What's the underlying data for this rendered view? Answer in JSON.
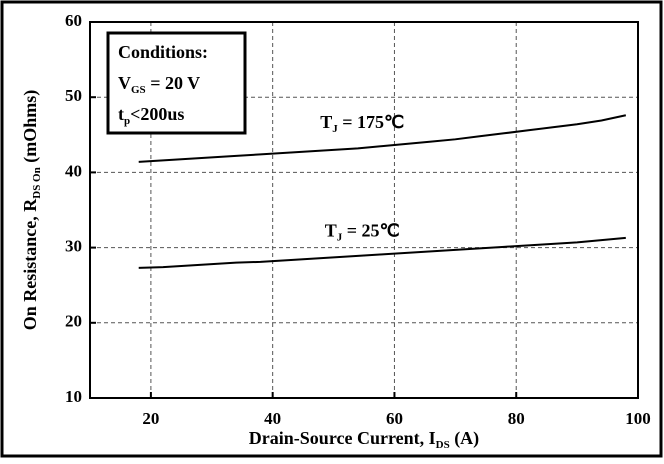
{
  "chart_data": {
    "type": "line",
    "xlabel": [
      "Drain-Source Current, I",
      "DS",
      " (A)"
    ],
    "ylabel": [
      "On Resistance, R",
      "DS On",
      "  (mOhms)"
    ],
    "annotation": [
      [
        "Conditions:"
      ],
      [
        "V",
        "GS",
        " = 20 V"
      ],
      [
        "t",
        "p",
        "<200us"
      ]
    ],
    "x": [
      18,
      22,
      26,
      30,
      34,
      38,
      42,
      46,
      50,
      54,
      58,
      62,
      66,
      70,
      74,
      78,
      82,
      86,
      90,
      94,
      98
    ],
    "series": [
      {
        "name": [
          "T",
          "J",
          " = 175℃"
        ],
        "color": "#000000",
        "values": [
          41.4,
          41.6,
          41.8,
          42.0,
          42.2,
          42.4,
          42.6,
          42.8,
          43.0,
          43.2,
          43.5,
          43.8,
          44.1,
          44.4,
          44.8,
          45.2,
          45.6,
          46.0,
          46.4,
          46.9,
          47.6
        ]
      },
      {
        "name": [
          "T",
          "J",
          " = 25℃"
        ],
        "color": "#000000",
        "values": [
          27.3,
          27.4,
          27.6,
          27.8,
          28.0,
          28.1,
          28.3,
          28.5,
          28.7,
          28.9,
          29.1,
          29.3,
          29.5,
          29.7,
          29.9,
          30.1,
          30.3,
          30.5,
          30.7,
          31.0,
          31.3
        ]
      }
    ],
    "xlim": [
      10,
      100
    ],
    "xticks": [
      20,
      40,
      60,
      80,
      100
    ],
    "ylim": [
      10,
      60
    ],
    "yticks": [
      10,
      20,
      30,
      40,
      50,
      60
    ],
    "grid": true
  }
}
